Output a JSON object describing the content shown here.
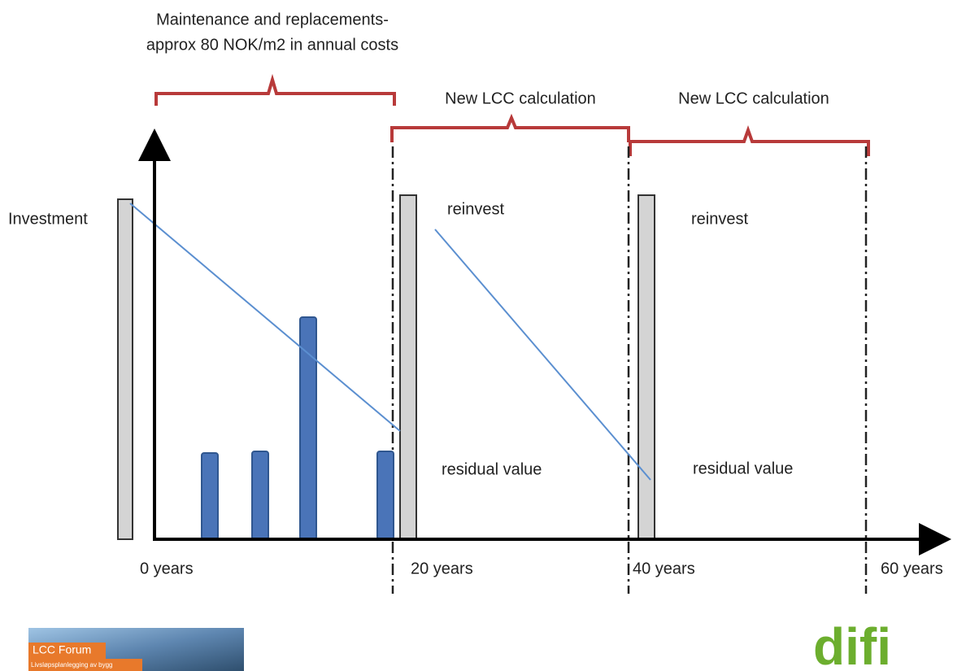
{
  "header": {
    "title_lines": [
      "Maintenance and replacements-",
      "approx 80 NOK/m2  in annual costs"
    ]
  },
  "periods": [
    {
      "label": "New LCC calculation"
    },
    {
      "label": "New LCC calculation"
    }
  ],
  "labels": {
    "investment": "Investment",
    "reinvest": [
      "reinvest",
      "reinvest"
    ],
    "residual": [
      "residual value",
      "residual value"
    ]
  },
  "timeline": [
    "0 years",
    "20 years",
    "40 years",
    "60 years"
  ],
  "logos": {
    "lcc_forum": "LCC Forum",
    "lcc_forum_sub": "Livsløpsplanlegging av bygg",
    "difi": "difi"
  }
}
